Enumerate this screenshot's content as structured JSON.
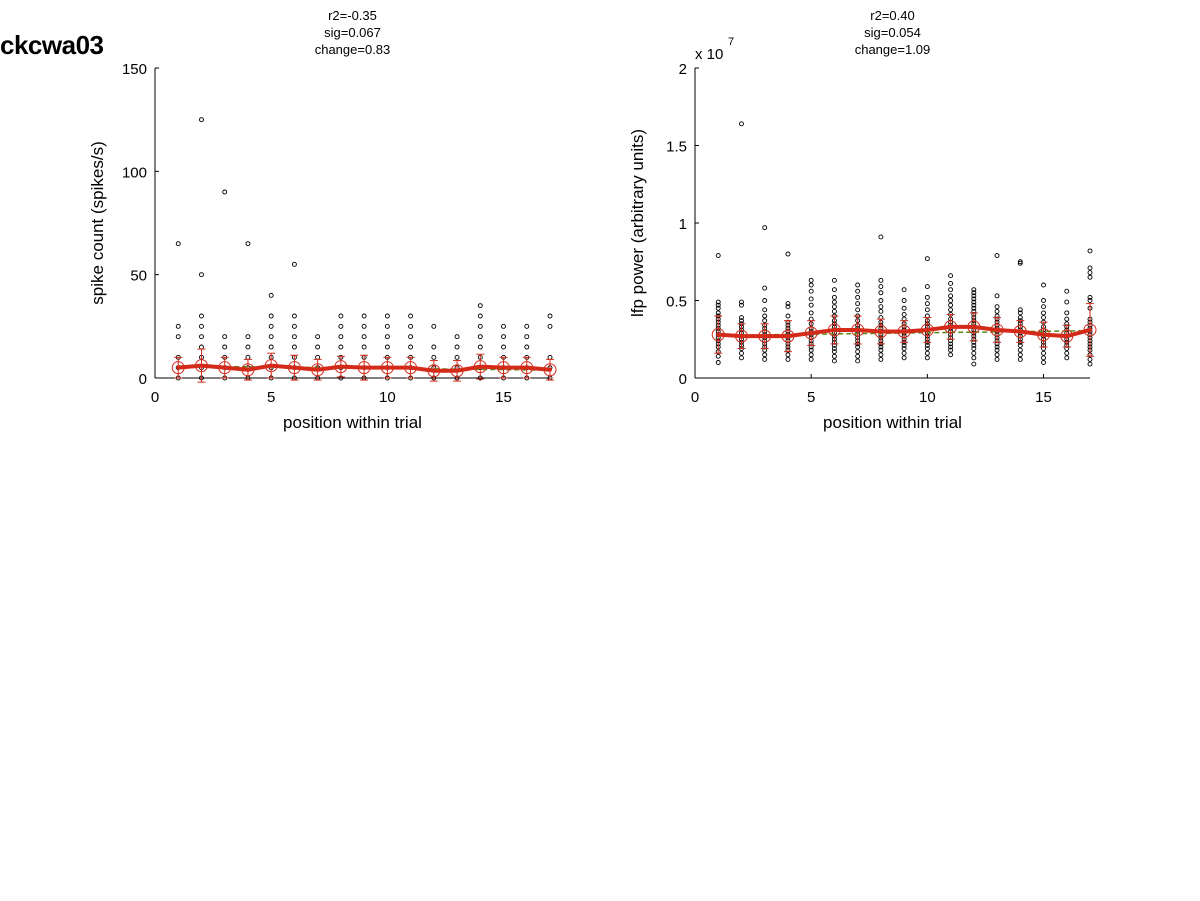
{
  "page": {
    "title": "ckcwa03"
  },
  "chart_data": [
    {
      "type": "scatter",
      "title_lines": [
        "r2=-0.35",
        "sig=0.067",
        "change=0.83"
      ],
      "xlabel": "position within trial",
      "ylabel": "spike count (spikes/s)",
      "exponent_label": "",
      "xlim": [
        0,
        17
      ],
      "ylim": [
        0,
        150
      ],
      "xticks": [
        0,
        5,
        10,
        15
      ],
      "yticks": [
        0,
        50,
        100,
        150
      ],
      "ytick_labels": [
        "0",
        "50",
        "100",
        "150"
      ],
      "grid": false,
      "colors": {
        "points": "#000000",
        "mean": "#d42a1a",
        "fit": "#5a8a1a"
      },
      "points": [
        {
          "x": 1,
          "y": [
            0,
            5,
            10,
            20,
            25,
            65
          ]
        },
        {
          "x": 2,
          "y": [
            0,
            5,
            10,
            15,
            20,
            25,
            30,
            50,
            125
          ]
        },
        {
          "x": 3,
          "y": [
            0,
            5,
            10,
            15,
            20,
            90
          ]
        },
        {
          "x": 4,
          "y": [
            0,
            5,
            10,
            15,
            20,
            65
          ]
        },
        {
          "x": 5,
          "y": [
            0,
            5,
            10,
            15,
            20,
            25,
            30,
            40
          ]
        },
        {
          "x": 6,
          "y": [
            0,
            5,
            10,
            15,
            20,
            25,
            30,
            55
          ]
        },
        {
          "x": 7,
          "y": [
            0,
            5,
            10,
            15,
            20
          ]
        },
        {
          "x": 8,
          "y": [
            0,
            5,
            10,
            15,
            20,
            25,
            30
          ]
        },
        {
          "x": 9,
          "y": [
            0,
            5,
            10,
            15,
            20,
            25,
            30
          ]
        },
        {
          "x": 10,
          "y": [
            0,
            5,
            10,
            15,
            20,
            25,
            30
          ]
        },
        {
          "x": 11,
          "y": [
            0,
            5,
            10,
            15,
            20,
            25,
            30
          ]
        },
        {
          "x": 12,
          "y": [
            0,
            5,
            10,
            15,
            25
          ]
        },
        {
          "x": 13,
          "y": [
            0,
            5,
            10,
            15,
            20
          ]
        },
        {
          "x": 14,
          "y": [
            0,
            5,
            10,
            15,
            20,
            25,
            30,
            35
          ]
        },
        {
          "x": 15,
          "y": [
            0,
            5,
            10,
            15,
            20,
            25
          ]
        },
        {
          "x": 16,
          "y": [
            0,
            5,
            10,
            15,
            20,
            25
          ]
        },
        {
          "x": 17,
          "y": [
            0,
            5,
            10,
            25,
            30
          ]
        }
      ],
      "mean": {
        "x": [
          1,
          2,
          3,
          4,
          5,
          6,
          7,
          8,
          9,
          10,
          11,
          12,
          13,
          14,
          15,
          16,
          17
        ],
        "y": [
          5,
          6,
          5,
          4,
          6,
          5,
          4,
          5.5,
          5,
          5,
          5,
          3.5,
          3.5,
          5.5,
          5,
          5,
          4
        ],
        "err": [
          5,
          8,
          5,
          5,
          6,
          6,
          5,
          5,
          6,
          5,
          5,
          5,
          5,
          6,
          5,
          5,
          5
        ]
      },
      "fit": {
        "x": [
          1,
          17
        ],
        "y": [
          5.8,
          3.8
        ]
      }
    },
    {
      "type": "scatter",
      "title_lines": [
        "r2=0.40",
        "sig=0.054",
        "change=1.09"
      ],
      "xlabel": "position within trial",
      "ylabel": "lfp power (arbitrary units)",
      "exponent_label": "x 10",
      "exponent_sup": "7",
      "xlim": [
        0,
        17
      ],
      "ylim": [
        0,
        2
      ],
      "xticks": [
        0,
        5,
        10,
        15
      ],
      "yticks": [
        0,
        0.5,
        1,
        1.5,
        2
      ],
      "ytick_labels": [
        "0",
        "0.5",
        "1",
        "1.5",
        "2"
      ],
      "grid": false,
      "colors": {
        "points": "#000000",
        "mean": "#d42a1a",
        "fit": "#5a8a1a"
      },
      "points": [
        {
          "x": 1,
          "y": [
            0.1,
            0.14,
            0.17,
            0.2,
            0.22,
            0.24,
            0.26,
            0.28,
            0.3,
            0.32,
            0.34,
            0.36,
            0.38,
            0.4,
            0.42,
            0.45,
            0.47,
            0.49,
            0.79
          ]
        },
        {
          "x": 2,
          "y": [
            0.13,
            0.16,
            0.19,
            0.21,
            0.23,
            0.25,
            0.27,
            0.29,
            0.31,
            0.33,
            0.35,
            0.37,
            0.39,
            0.47,
            0.49,
            1.64
          ]
        },
        {
          "x": 3,
          "y": [
            0.12,
            0.15,
            0.18,
            0.2,
            0.22,
            0.24,
            0.26,
            0.28,
            0.3,
            0.32,
            0.34,
            0.37,
            0.4,
            0.44,
            0.5,
            0.58,
            0.97
          ]
        },
        {
          "x": 4,
          "y": [
            0.12,
            0.15,
            0.18,
            0.2,
            0.22,
            0.24,
            0.26,
            0.28,
            0.3,
            0.32,
            0.34,
            0.36,
            0.4,
            0.46,
            0.48,
            0.8
          ]
        },
        {
          "x": 5,
          "y": [
            0.12,
            0.15,
            0.18,
            0.2,
            0.22,
            0.24,
            0.26,
            0.28,
            0.3,
            0.32,
            0.35,
            0.38,
            0.42,
            0.47,
            0.51,
            0.56,
            0.6,
            0.63
          ]
        },
        {
          "x": 6,
          "y": [
            0.11,
            0.14,
            0.17,
            0.19,
            0.21,
            0.23,
            0.25,
            0.27,
            0.29,
            0.31,
            0.33,
            0.35,
            0.37,
            0.4,
            0.43,
            0.46,
            0.49,
            0.52,
            0.57,
            0.63
          ]
        },
        {
          "x": 7,
          "y": [
            0.11,
            0.14,
            0.17,
            0.2,
            0.22,
            0.24,
            0.26,
            0.28,
            0.3,
            0.32,
            0.34,
            0.37,
            0.4,
            0.44,
            0.48,
            0.52,
            0.56,
            0.6
          ]
        },
        {
          "x": 8,
          "y": [
            0.12,
            0.15,
            0.18,
            0.2,
            0.22,
            0.24,
            0.26,
            0.28,
            0.3,
            0.32,
            0.34,
            0.36,
            0.39,
            0.43,
            0.46,
            0.5,
            0.55,
            0.59,
            0.63,
            0.91
          ]
        },
        {
          "x": 9,
          "y": [
            0.13,
            0.16,
            0.19,
            0.21,
            0.23,
            0.25,
            0.27,
            0.29,
            0.31,
            0.33,
            0.35,
            0.38,
            0.41,
            0.45,
            0.5,
            0.57
          ]
        },
        {
          "x": 10,
          "y": [
            0.13,
            0.16,
            0.19,
            0.21,
            0.23,
            0.25,
            0.27,
            0.29,
            0.31,
            0.33,
            0.35,
            0.37,
            0.4,
            0.44,
            0.48,
            0.52,
            0.59,
            0.77
          ]
        },
        {
          "x": 11,
          "y": [
            0.15,
            0.18,
            0.2,
            0.22,
            0.24,
            0.26,
            0.28,
            0.3,
            0.32,
            0.34,
            0.36,
            0.38,
            0.41,
            0.44,
            0.47,
            0.5,
            0.53,
            0.57,
            0.61,
            0.66
          ]
        },
        {
          "x": 12,
          "y": [
            0.09,
            0.13,
            0.16,
            0.19,
            0.21,
            0.23,
            0.25,
            0.27,
            0.29,
            0.31,
            0.33,
            0.35,
            0.37,
            0.39,
            0.41,
            0.43,
            0.45,
            0.47,
            0.49,
            0.51,
            0.53,
            0.55,
            0.57
          ]
        },
        {
          "x": 13,
          "y": [
            0.12,
            0.15,
            0.18,
            0.2,
            0.22,
            0.24,
            0.26,
            0.28,
            0.3,
            0.32,
            0.34,
            0.36,
            0.38,
            0.4,
            0.43,
            0.46,
            0.53,
            0.79
          ]
        },
        {
          "x": 14,
          "y": [
            0.12,
            0.15,
            0.18,
            0.21,
            0.23,
            0.25,
            0.27,
            0.29,
            0.31,
            0.33,
            0.35,
            0.37,
            0.39,
            0.42,
            0.44,
            0.74,
            0.75
          ]
        },
        {
          "x": 15,
          "y": [
            0.1,
            0.13,
            0.16,
            0.19,
            0.21,
            0.23,
            0.25,
            0.27,
            0.29,
            0.31,
            0.33,
            0.36,
            0.39,
            0.42,
            0.46,
            0.5,
            0.6
          ]
        },
        {
          "x": 16,
          "y": [
            0.13,
            0.16,
            0.19,
            0.21,
            0.23,
            0.25,
            0.27,
            0.29,
            0.31,
            0.33,
            0.35,
            0.38,
            0.42,
            0.49,
            0.56
          ]
        },
        {
          "x": 17,
          "y": [
            0.09,
            0.12,
            0.15,
            0.18,
            0.2,
            0.22,
            0.24,
            0.26,
            0.28,
            0.3,
            0.32,
            0.34,
            0.36,
            0.38,
            0.45,
            0.5,
            0.52,
            0.65,
            0.68,
            0.71,
            0.82
          ]
        }
      ],
      "mean": {
        "x": [
          1,
          2,
          3,
          4,
          5,
          6,
          7,
          8,
          9,
          10,
          11,
          12,
          13,
          14,
          15,
          16,
          17
        ],
        "y": [
          0.28,
          0.27,
          0.27,
          0.27,
          0.29,
          0.31,
          0.31,
          0.3,
          0.3,
          0.31,
          0.33,
          0.33,
          0.31,
          0.3,
          0.28,
          0.27,
          0.31
        ],
        "err": [
          0.12,
          0.08,
          0.08,
          0.1,
          0.08,
          0.09,
          0.09,
          0.08,
          0.07,
          0.08,
          0.08,
          0.09,
          0.08,
          0.07,
          0.08,
          0.07,
          0.17
        ]
      },
      "fit": {
        "x": [
          1,
          17
        ],
        "y": [
          0.275,
          0.305
        ]
      }
    }
  ]
}
